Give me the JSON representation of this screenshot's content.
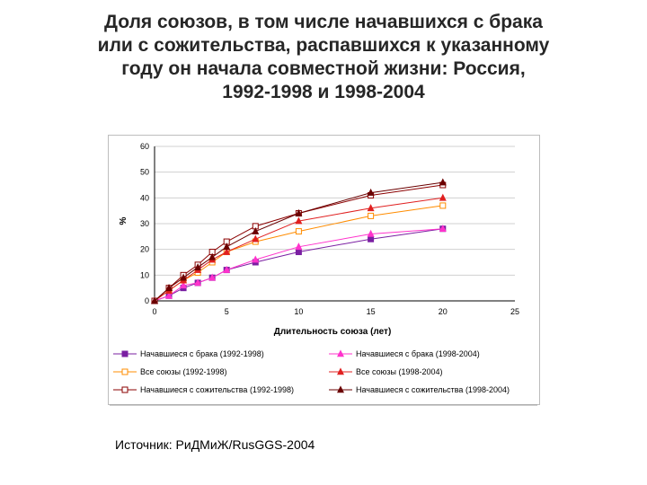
{
  "title_lines": [
    "Доля союзов, в том числе начавшихся с брака",
    "или с сожительства, распавшихся к указанному",
    "году он начала совместной жизни: Россия,",
    "1992-1998 и 1998-2004"
  ],
  "source_text": "Источник: РиДМиЖ/RusGGS-2004",
  "chart_data": {
    "type": "line",
    "xlabel": "Длительность союза (лет)",
    "ylabel": "%",
    "xlim": [
      0,
      25
    ],
    "ylim": [
      0,
      60
    ],
    "xticks": [
      0,
      5,
      10,
      15,
      20,
      25
    ],
    "yticks": [
      0,
      10,
      20,
      30,
      40,
      50,
      60
    ],
    "grid": "horizontal",
    "legend_position": "bottom",
    "x": [
      0,
      1,
      2,
      3,
      4,
      5,
      7,
      10,
      15,
      20
    ],
    "series": [
      {
        "name": "Начавшиеся с брака (1992-1998)",
        "color": "#7a1fa2",
        "marker": "square-filled",
        "values": [
          0,
          2,
          5,
          7,
          9,
          12,
          15,
          19,
          24,
          28
        ]
      },
      {
        "name": "Начавшиеся с брака (1998-2004)",
        "color": "#ff33cc",
        "marker": "triangle-filled",
        "values": [
          0,
          2,
          6,
          7,
          9,
          12,
          16,
          21,
          26,
          28
        ]
      },
      {
        "name": "Все союзы (1992-1998)",
        "color": "#ff8c00",
        "marker": "square-open",
        "values": [
          0,
          4,
          8,
          11,
          15,
          19,
          23,
          27,
          33,
          37
        ]
      },
      {
        "name": "Все союзы (1998-2004)",
        "color": "#e02020",
        "marker": "triangle-filled",
        "values": [
          0,
          4,
          8,
          12,
          16,
          19,
          24,
          31,
          36,
          40
        ]
      },
      {
        "name": "Начавшиеся с сожительства (1992-1998)",
        "color": "#8b0000",
        "marker": "square-open",
        "values": [
          0,
          5,
          10,
          14,
          19,
          23,
          29,
          34,
          41,
          45
        ]
      },
      {
        "name": "Начавшиеся с сожительства (1998-2004)",
        "color": "#6b0000",
        "marker": "triangle-filled",
        "values": [
          0,
          5,
          9,
          13,
          17,
          21,
          27,
          34,
          42,
          46
        ]
      }
    ]
  }
}
